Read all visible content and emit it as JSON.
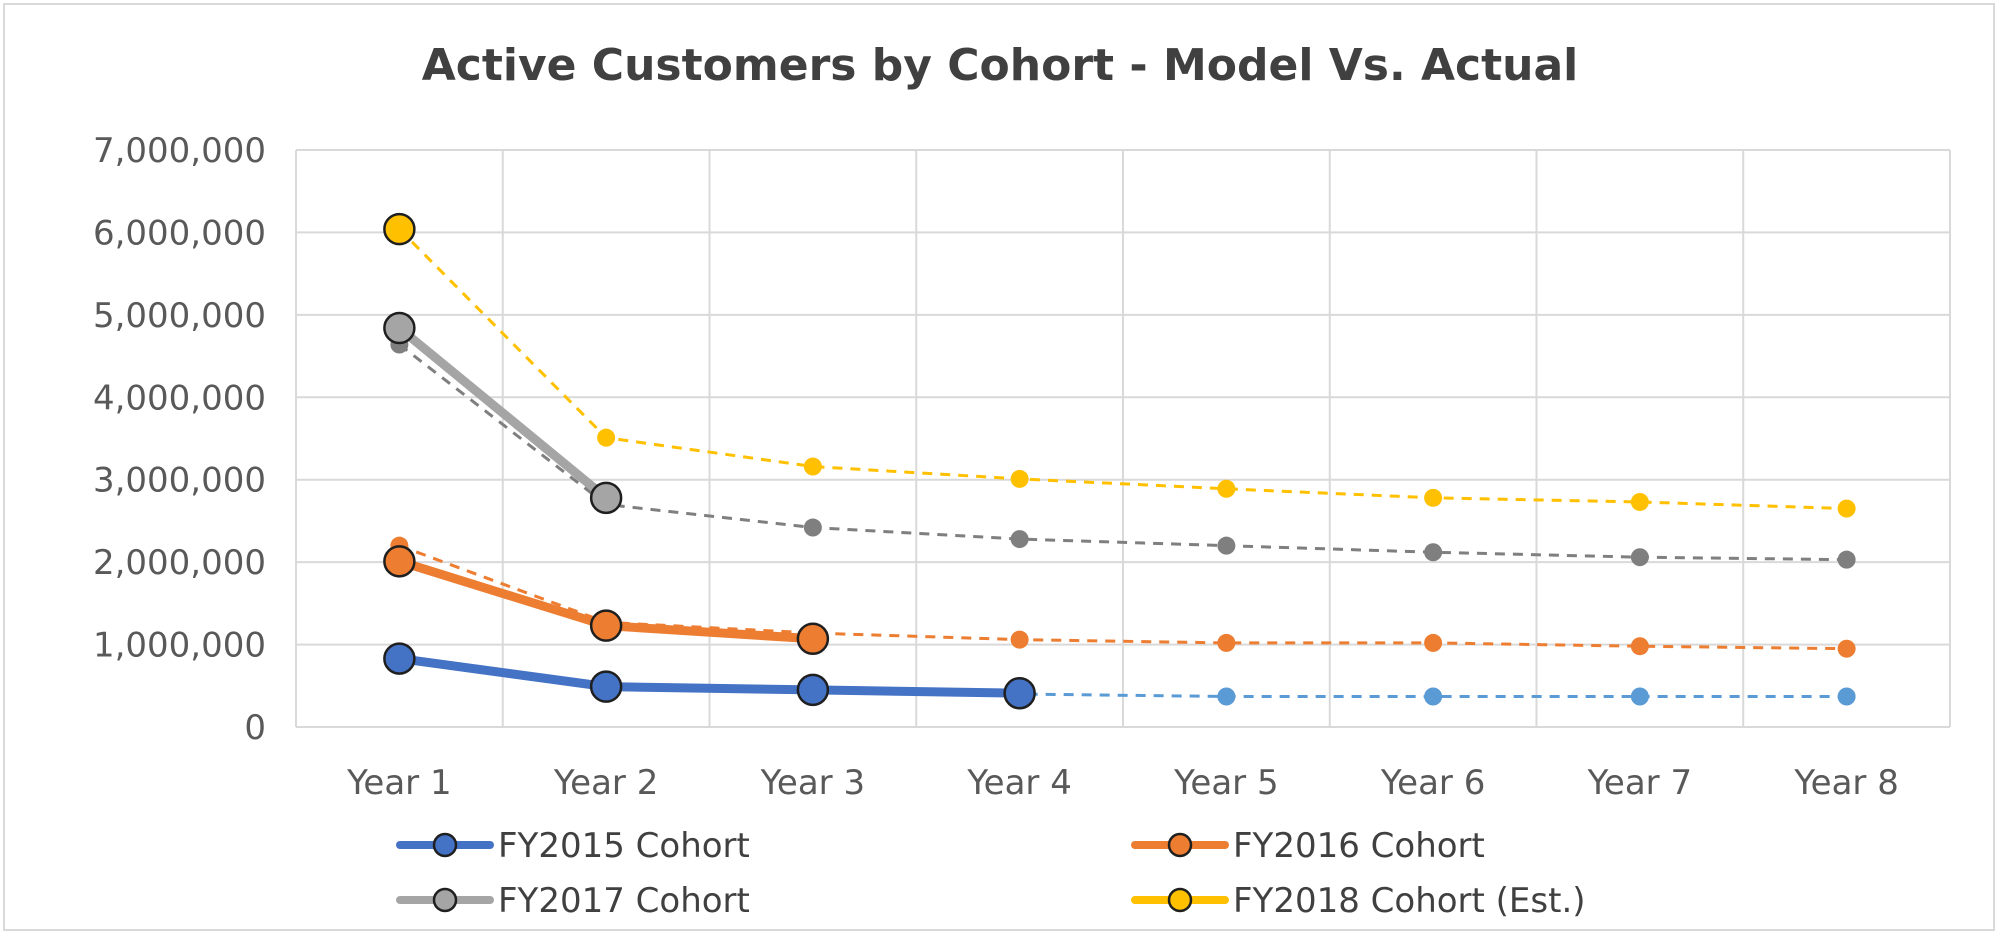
{
  "chart_data": {
    "type": "line",
    "title": "Active Customers by Cohort - Model Vs. Actual",
    "xlabel": "",
    "ylabel": "",
    "categories": [
      "Year 1",
      "Year 2",
      "Year 3",
      "Year 4",
      "Year 5",
      "Year 6",
      "Year 7",
      "Year 8"
    ],
    "ylim": [
      0,
      7000000
    ],
    "yticks": [
      0,
      1000000,
      2000000,
      3000000,
      4000000,
      5000000,
      6000000,
      7000000
    ],
    "ytick_labels": [
      "0",
      "1,000,000",
      "2,000,000",
      "3,000,000",
      "4,000,000",
      "5,000,000",
      "6,000,000",
      "7,000,000"
    ],
    "grid": true,
    "legend_position": "bottom",
    "series": [
      {
        "name": "FY2015 Cohort",
        "color": "#4472c4",
        "model_color": "#5b9bd5",
        "actual": [
          830000,
          490000,
          450000,
          410000
        ],
        "model": [
          800000,
          480000,
          440000,
          400000,
          370000,
          370000,
          370000,
          370000
        ]
      },
      {
        "name": "FY2016 Cohort",
        "color": "#ed7d31",
        "model_color": "#ed7d31",
        "actual": [
          2010000,
          1230000,
          1070000
        ],
        "model": [
          2200000,
          1270000,
          1140000,
          1060000,
          1020000,
          1020000,
          980000,
          950000
        ]
      },
      {
        "name": "FY2017 Cohort",
        "color": "#a5a5a5",
        "model_color": "#7f7f7f",
        "actual": [
          4840000,
          2780000
        ],
        "model": [
          4640000,
          2700000,
          2420000,
          2280000,
          2200000,
          2120000,
          2060000,
          2030000
        ]
      },
      {
        "name": "FY2018 Cohort (Est.)",
        "color": "#ffc000",
        "model_color": "#ffc000",
        "actual": [
          6040000
        ],
        "model": [
          6040000,
          3510000,
          3160000,
          3010000,
          2890000,
          2780000,
          2730000,
          2650000
        ]
      }
    ]
  }
}
